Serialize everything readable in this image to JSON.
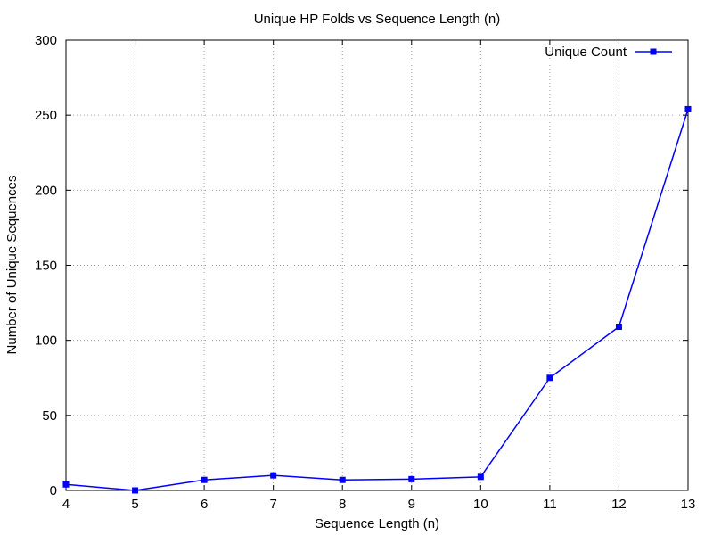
{
  "chart_data": {
    "type": "line",
    "title": "Unique HP Folds vs Sequence Length (n)",
    "xlabel": "Sequence Length (n)",
    "ylabel": "Number of Unique Sequences",
    "x": [
      4,
      5,
      6,
      7,
      8,
      9,
      10,
      11,
      12,
      13
    ],
    "series": [
      {
        "name": "Unique Count",
        "values": [
          4,
          0,
          7,
          10,
          7,
          7.5,
          9,
          75,
          109,
          254
        ],
        "color": "#0000ff"
      }
    ],
    "xlim": [
      4,
      13
    ],
    "ylim": [
      0,
      300
    ],
    "xticks": [
      4,
      5,
      6,
      7,
      8,
      9,
      10,
      11,
      12,
      13
    ],
    "yticks": [
      0,
      50,
      100,
      150,
      200,
      250,
      300
    ],
    "grid": true,
    "legend_position": "top-right"
  }
}
